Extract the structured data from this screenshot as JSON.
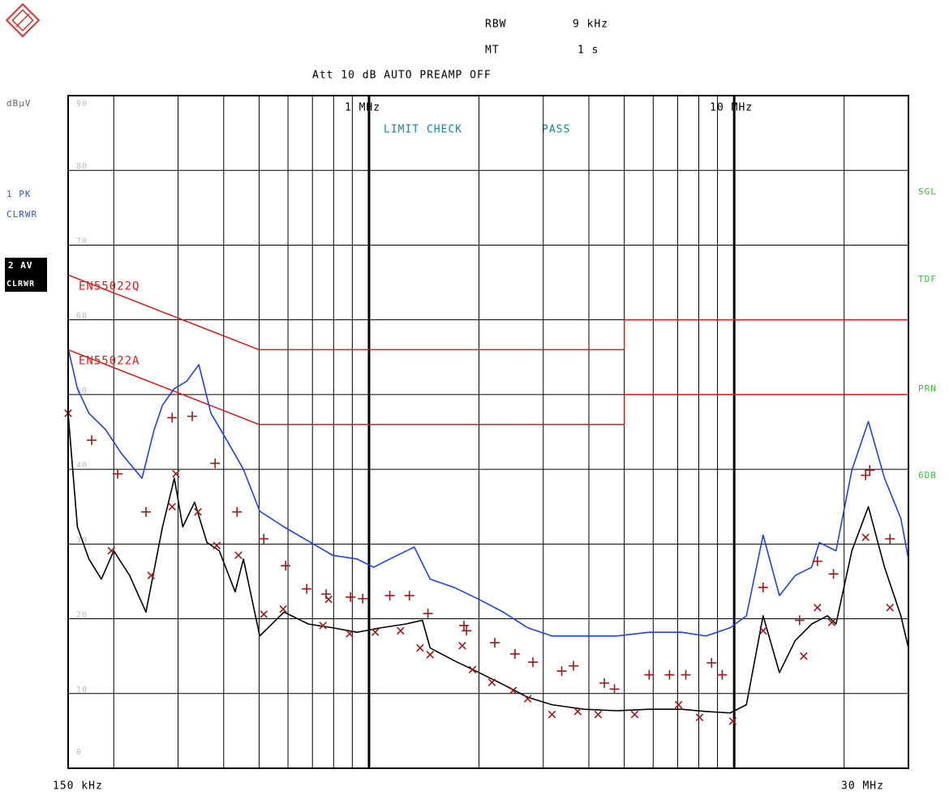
{
  "chart_data": {
    "type": "line",
    "header": {
      "rbw_label": "RBW",
      "rbw": "9 kHz",
      "mt_label": "MT",
      "mt": "1 s",
      "att": "Att 10 dB AUTO PREAMP OFF"
    },
    "y_unit": "dBµV",
    "trace_labels": [
      {
        "line1": "1 PK",
        "line2": "CLRWR",
        "color": "#3355dd"
      },
      {
        "line1": "2 AV",
        "line2": "CLRWR",
        "color": "#000000"
      }
    ],
    "limit_check": "LIMIT CHECK",
    "limit_result": "PASS",
    "side_labels": [
      "SGL",
      "TDF",
      "PRN",
      "6DB"
    ],
    "xscale": "log",
    "xlim": [
      0.15,
      30
    ],
    "ylim": [
      0,
      90
    ],
    "xticks": [
      {
        "value": 0.15,
        "label": "150 kHz"
      },
      {
        "value": 1,
        "label": "1 MHz"
      },
      {
        "value": 10,
        "label": "10 MHz"
      },
      {
        "value": 30,
        "label": "30 MHz"
      }
    ],
    "x_minor_grid": [
      0.2,
      0.3,
      0.4,
      0.5,
      0.6,
      0.7,
      0.8,
      0.9,
      2,
      3,
      4,
      5,
      6,
      7,
      8,
      9,
      20
    ],
    "yticks": [
      0,
      10,
      20,
      30,
      40,
      50,
      60,
      70,
      80,
      90
    ],
    "grid": true,
    "series": [
      {
        "name": "EN55022Q",
        "color": "#e01818",
        "x": [
          0.15,
          0.5,
          5,
          5,
          30
        ],
        "values": [
          66,
          56,
          56,
          60,
          60
        ]
      },
      {
        "name": "EN55022A",
        "color": "#e01818",
        "x": [
          0.15,
          0.5,
          5,
          5,
          30
        ],
        "values": [
          56,
          46,
          46,
          50,
          50
        ]
      },
      {
        "color": "#1f3fff",
        "x": [
          0.15,
          0.159,
          0.171,
          0.19,
          0.21,
          0.239,
          0.258,
          0.272,
          0.293,
          0.317,
          0.342,
          0.369,
          0.409,
          0.453,
          0.502,
          0.585,
          0.682,
          0.795,
          0.927,
          1.03,
          1.14,
          1.33,
          1.47,
          1.71,
          2.0,
          2.33,
          2.72,
          3.17,
          3.88,
          4.77,
          5.85,
          7.18,
          8.37,
          9.75,
          10.8,
          12.0,
          13.3,
          14.7,
          16.3,
          17.1,
          19.0,
          21.0,
          23.3,
          25.8,
          28.6,
          30
        ],
        "values": [
          56.2,
          50.8,
          47.5,
          45.3,
          42.1,
          38.8,
          45.3,
          48.6,
          50.8,
          51.8,
          54.0,
          47.5,
          43.8,
          40.0,
          34.4,
          32.3,
          30.4,
          28.5,
          28.0,
          26.9,
          28.0,
          29.6,
          25.3,
          24.2,
          22.6,
          20.9,
          18.8,
          17.7,
          17.7,
          17.7,
          18.2,
          18.2,
          17.7,
          18.8,
          20.4,
          31.2,
          23.1,
          25.8,
          26.9,
          30.2,
          29.1,
          39.9,
          46.4,
          38.8,
          33.4,
          28.0
        ]
      },
      {
        "color": "#000000",
        "x": [
          0.15,
          0.159,
          0.171,
          0.185,
          0.2,
          0.221,
          0.245,
          0.272,
          0.293,
          0.309,
          0.333,
          0.36,
          0.389,
          0.43,
          0.453,
          0.502,
          0.585,
          0.682,
          0.795,
          0.927,
          1.08,
          1.26,
          1.4,
          1.47,
          1.71,
          2.0,
          2.33,
          2.72,
          3.17,
          3.88,
          4.77,
          5.85,
          7.18,
          8.37,
          9.75,
          10.8,
          12.0,
          13.3,
          14.7,
          16.3,
          18.0,
          19.0,
          21.0,
          23.3,
          25.8,
          28.6,
          30
        ],
        "values": [
          47.5,
          32.3,
          28.0,
          25.3,
          29.1,
          25.8,
          20.9,
          32.3,
          38.8,
          32.3,
          35.6,
          30.2,
          29.1,
          23.6,
          28.0,
          17.7,
          20.9,
          19.3,
          18.8,
          18.2,
          18.8,
          19.3,
          19.8,
          16.1,
          14.4,
          12.8,
          11.2,
          9.5,
          8.5,
          7.9,
          7.7,
          7.9,
          7.9,
          7.6,
          7.4,
          8.5,
          20.4,
          12.8,
          17.1,
          19.3,
          20.4,
          19.3,
          29.1,
          35.0,
          26.9,
          20.4,
          16.1
        ]
      },
      {
        "marker": "+",
        "color": "#a01818",
        "x": [
          0.174,
          0.205,
          0.245,
          0.289,
          0.328,
          0.379,
          0.435,
          0.515,
          0.591,
          0.675,
          0.763,
          0.89,
          0.961,
          1.14,
          1.29,
          1.45,
          1.82,
          1.85,
          2.21,
          2.51,
          2.81,
          3.37,
          3.63,
          4.41,
          4.7,
          5.85,
          6.65,
          7.37,
          8.67,
          9.27,
          12.0,
          15.1,
          16.9,
          18.7,
          22.9,
          23.5,
          26.7
        ],
        "values": [
          43.9,
          39.4,
          34.3,
          46.9,
          47.1,
          40.8,
          34.3,
          30.7,
          27.1,
          24.0,
          23.3,
          22.9,
          22.7,
          23.1,
          23.1,
          20.7,
          19.1,
          18.4,
          16.8,
          15.3,
          14.2,
          13.0,
          13.7,
          11.4,
          10.6,
          12.5,
          12.5,
          12.5,
          14.1,
          12.5,
          24.2,
          19.8,
          27.7,
          26.0,
          39.2,
          39.9,
          30.7
        ]
      },
      {
        "marker": "x",
        "color": "#a01818",
        "x": [
          0.15,
          0.197,
          0.253,
          0.289,
          0.296,
          0.34,
          0.383,
          0.439,
          0.515,
          0.582,
          0.748,
          0.775,
          0.885,
          1.04,
          1.22,
          1.38,
          1.47,
          1.8,
          1.92,
          2.17,
          2.48,
          2.72,
          3.17,
          3.73,
          4.24,
          5.34,
          7.04,
          8.04,
          9.91,
          12.0,
          15.5,
          16.9,
          18.5,
          22.9,
          26.7
        ],
        "values": [
          47.5,
          29.1,
          25.8,
          35.0,
          39.4,
          34.3,
          29.8,
          28.5,
          20.6,
          21.3,
          19.1,
          22.6,
          18.0,
          18.2,
          18.4,
          16.1,
          15.2,
          16.4,
          13.2,
          11.5,
          10.4,
          9.3,
          7.2,
          7.6,
          7.2,
          7.2,
          8.5,
          6.8,
          6.3,
          18.4,
          15.0,
          21.5,
          19.5,
          30.9,
          21.5
        ]
      }
    ]
  }
}
